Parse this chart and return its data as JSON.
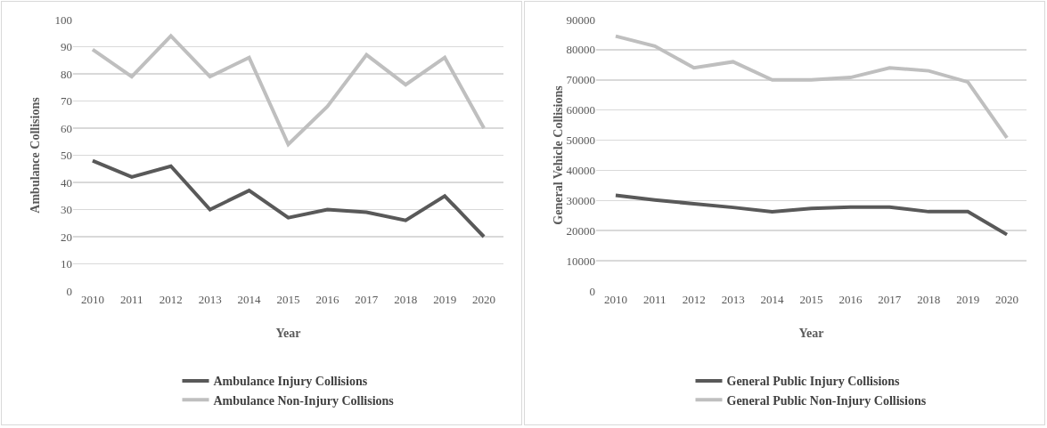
{
  "chart_data": [
    {
      "type": "line",
      "xlabel": "Year",
      "ylabel": "Ambulance Collisions",
      "categories": [
        "2010",
        "2011",
        "2012",
        "2013",
        "2014",
        "2015",
        "2016",
        "2017",
        "2018",
        "2019",
        "2020"
      ],
      "series": [
        {
          "name": "Ambulance Injury Collisions",
          "color": "#595959",
          "values": [
            48,
            42,
            46,
            30,
            37,
            27,
            30,
            29,
            26,
            35,
            20
          ]
        },
        {
          "name": "Ambulance Non-Injury Collisions",
          "color": "#bfbfbf",
          "values": [
            89,
            79,
            94,
            79,
            86,
            54,
            68,
            87,
            76,
            86,
            60
          ]
        }
      ],
      "ylim": [
        0,
        100
      ],
      "yticks": [
        0,
        10,
        20,
        30,
        40,
        50,
        60,
        70,
        80,
        90,
        100
      ],
      "grid": "y",
      "legend": "bottom",
      "marker": "none",
      "line_style": "solid"
    },
    {
      "type": "line",
      "xlabel": "Year",
      "ylabel": "General Vehicle Collisions",
      "categories": [
        "2010",
        "2011",
        "2012",
        "2013",
        "2014",
        "2015",
        "2016",
        "2017",
        "2018",
        "2019",
        "2020"
      ],
      "series": [
        {
          "name": "General Public Injury Collisions",
          "color": "#595959",
          "values": [
            31700,
            30200,
            28900,
            27700,
            26300,
            27400,
            27800,
            27800,
            26300,
            26300,
            18700
          ]
        },
        {
          "name": "General Public Non-Injury Collisions",
          "color": "#bfbfbf",
          "values": [
            84500,
            81200,
            74000,
            76000,
            70000,
            70000,
            70800,
            74000,
            73000,
            69300,
            50800
          ]
        }
      ],
      "ylim": [
        0,
        90000
      ],
      "yticks": [
        0,
        10000,
        20000,
        30000,
        40000,
        50000,
        60000,
        70000,
        80000,
        90000
      ],
      "grid": "y",
      "legend": "bottom",
      "marker": "none",
      "line_style": "solid"
    }
  ]
}
